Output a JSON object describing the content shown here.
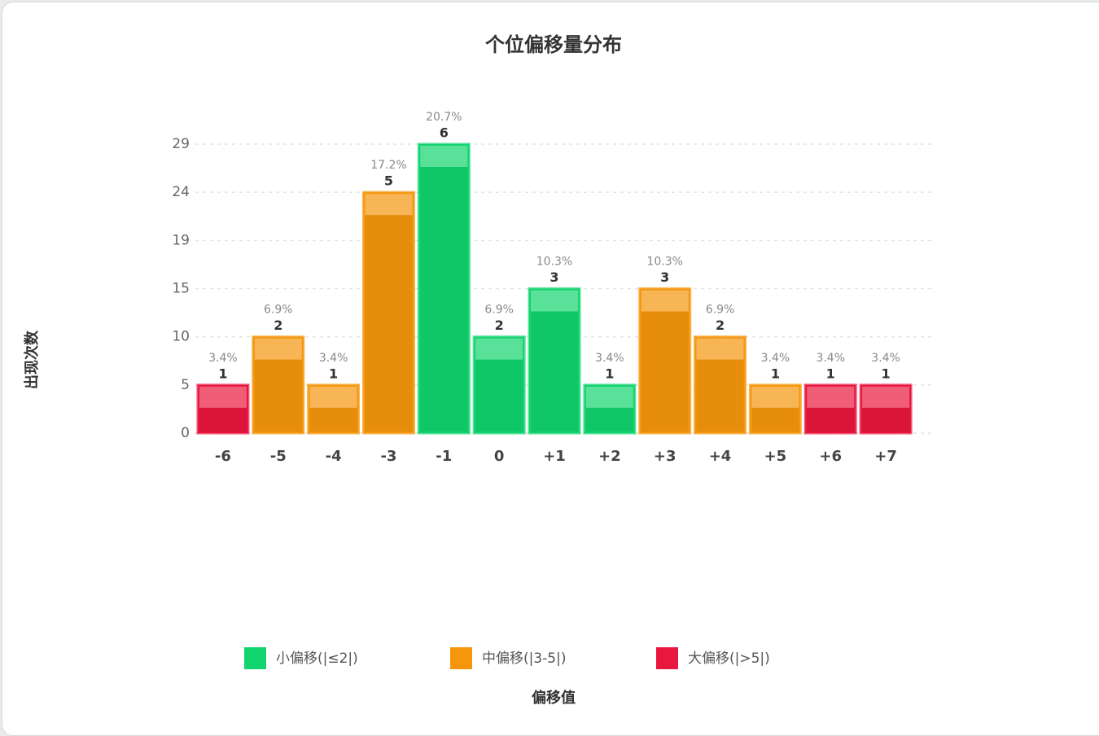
{
  "chart_data": {
    "type": "bar",
    "title": "个位偏移量分布",
    "y_label": "出现次数",
    "x_label": "偏移值",
    "categories": [
      "-6",
      "-5",
      "-4",
      "-3",
      "-1",
      "0",
      "+1",
      "+2",
      "+3",
      "+4",
      "+5",
      "+6",
      "+7"
    ],
    "values": [
      1,
      2,
      1,
      5,
      6,
      2,
      3,
      1,
      3,
      2,
      1,
      1,
      1
    ],
    "percent_labels": [
      "3.4%",
      "6.9%",
      "3.4%",
      "17.2%",
      "20.7%",
      "6.9%",
      "10.3%",
      "3.4%",
      "10.3%",
      "6.9%",
      "3.4%",
      "3.4%",
      "3.4%"
    ],
    "colors": [
      "#e8173d",
      "#f5960c",
      "#f5960c",
      "#f5960c",
      "#12d46e",
      "#12d46e",
      "#12d46e",
      "#12d46e",
      "#f5960c",
      "#f5960c",
      "#f5960c",
      "#e8173d",
      "#e8173d"
    ],
    "ylim": [
      0,
      6
    ],
    "yticks": [
      {
        "value": 0,
        "label": "0"
      },
      {
        "value": 1,
        "label": "5"
      },
      {
        "value": 2,
        "label": "10"
      },
      {
        "value": 3,
        "label": "15"
      },
      {
        "value": 4,
        "label": "19"
      },
      {
        "value": 5,
        "label": "24"
      },
      {
        "value": 6,
        "label": "29"
      }
    ],
    "grid": true,
    "legend": [
      {
        "name": "小偏移(|≤2|)",
        "color": "#12d46e"
      },
      {
        "name": "中偏移(|3-5|)",
        "color": "#f5960c"
      },
      {
        "name": "大偏移(|>5|)",
        "color": "#e8173d"
      }
    ],
    "legend_position": "bottom"
  }
}
